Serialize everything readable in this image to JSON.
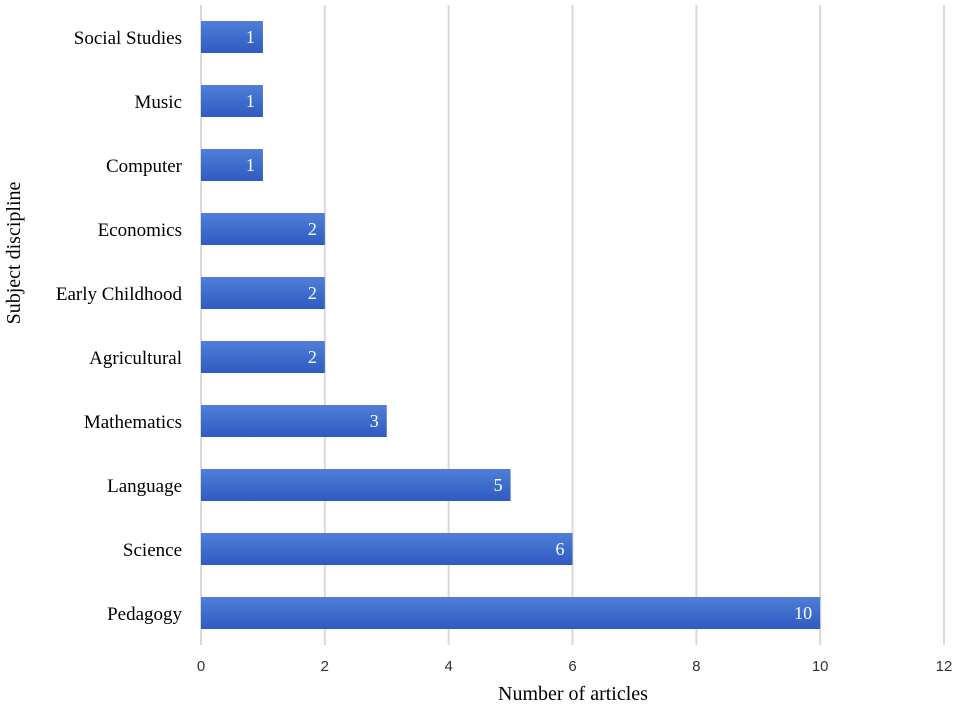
{
  "chart_data": {
    "type": "bar",
    "orientation": "horizontal",
    "categories": [
      "Social Studies",
      "Music",
      "Computer",
      "Economics",
      "Early Childhood",
      "Agricultural",
      "Mathematics",
      "Language",
      "Science",
      "Pedagogy"
    ],
    "values": [
      1,
      1,
      1,
      2,
      2,
      2,
      3,
      5,
      6,
      10
    ],
    "xlabel": "Number of articles",
    "ylabel": "Subject discipline",
    "xlim": [
      0,
      12
    ],
    "xticks": [
      "0",
      "2",
      "4",
      "6",
      "8",
      "10",
      "12"
    ],
    "grid": true,
    "data_labels": true,
    "bar_color": "#3563c4",
    "bar_color_light": "#4a78d4"
  }
}
